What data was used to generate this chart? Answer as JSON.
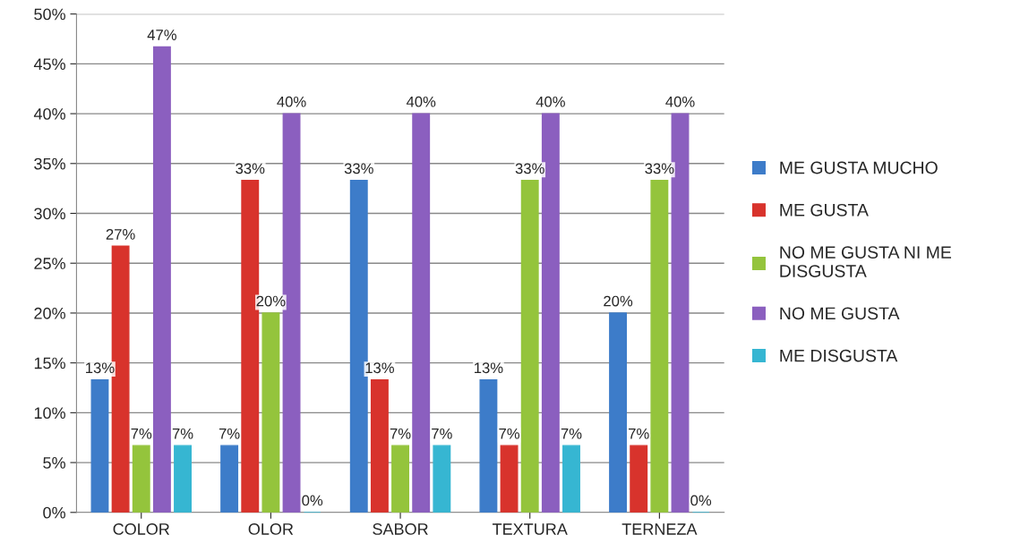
{
  "chart_data": {
    "type": "bar",
    "categories": [
      "COLOR",
      "OLOR",
      "SABOR",
      "TEXTURA",
      "TERNEZA"
    ],
    "series": [
      {
        "name": "ME GUSTA MUCHO",
        "color": "#3d7cc9",
        "values": [
          13.3,
          6.7,
          33.3,
          13.3,
          20
        ],
        "value_labels": [
          "13%",
          "7%",
          "33%",
          "13%",
          "20%"
        ]
      },
      {
        "name": "ME GUSTA",
        "color": "#d8332c",
        "values": [
          26.7,
          33.3,
          13.3,
          6.7,
          6.7
        ],
        "value_labels": [
          "27%",
          "33%",
          "13%",
          "7%",
          "7%"
        ]
      },
      {
        "name": "NO ME GUSTA NI ME\nDISGUSTA",
        "color": "#94c43c",
        "values": [
          6.7,
          20,
          6.7,
          33.3,
          33.3
        ],
        "value_labels": [
          "7%",
          "20%",
          "7%",
          "33%",
          "33%"
        ]
      },
      {
        "name": "NO ME GUSTA",
        "color": "#8b5fbf",
        "values": [
          46.7,
          40,
          40,
          40,
          40
        ],
        "value_labels": [
          "47%",
          "40%",
          "40%",
          "40%",
          "40%"
        ]
      },
      {
        "name": "ME DISGUSTA",
        "color": "#36b6d2",
        "values": [
          6.7,
          0,
          6.7,
          6.7,
          0
        ],
        "value_labels": [
          "7%",
          "0%",
          "7%",
          "7%",
          "0%"
        ]
      }
    ],
    "ylim": [
      0,
      50
    ],
    "yticks": [
      {
        "value": 0,
        "label": "0%"
      },
      {
        "value": 5,
        "label": "5%"
      },
      {
        "value": 10,
        "label": "10%"
      },
      {
        "value": 15,
        "label": "15%"
      },
      {
        "value": 20,
        "label": "20%"
      },
      {
        "value": 25,
        "label": "25%"
      },
      {
        "value": 30,
        "label": "30%"
      },
      {
        "value": 35,
        "label": "35%"
      },
      {
        "value": 40,
        "label": "40%"
      },
      {
        "value": 45,
        "label": "45%"
      },
      {
        "value": 50,
        "label": "50%"
      }
    ],
    "grid": "y",
    "legend": "right"
  }
}
